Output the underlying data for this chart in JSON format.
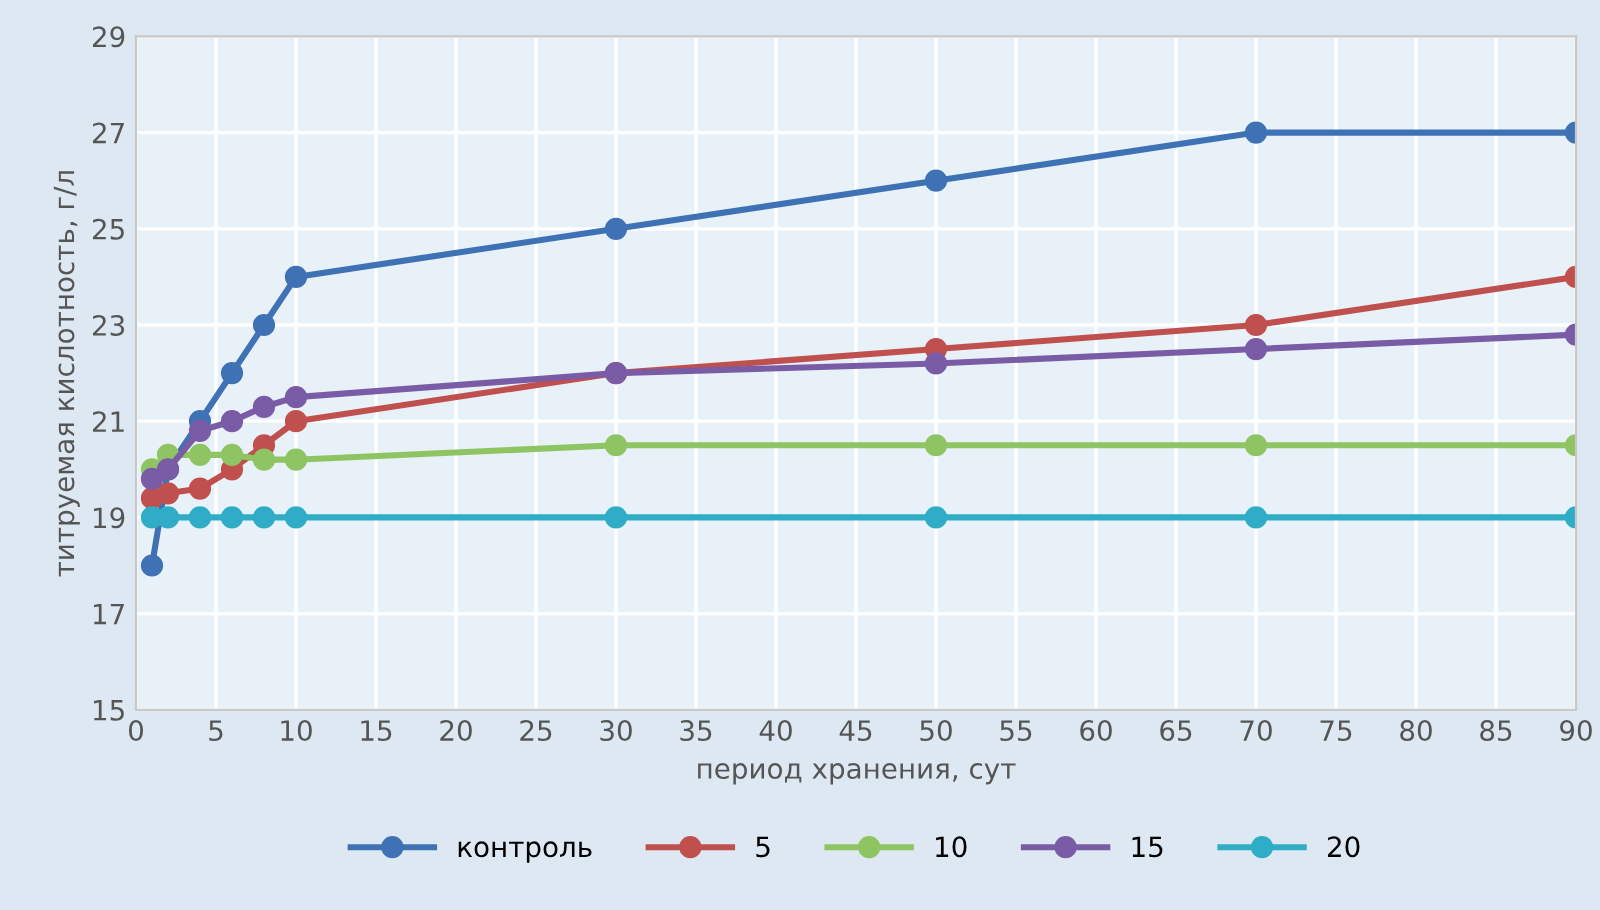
{
  "chart_data": {
    "type": "line",
    "xlabel": "период хранения, сут",
    "ylabel": "титруемая кислотность, г/л",
    "x": [
      1,
      2,
      4,
      6,
      8,
      10,
      30,
      50,
      70,
      90
    ],
    "series": [
      {
        "name": "контроль",
        "color": "#3f72b5",
        "values": [
          18,
          20,
          21,
          22,
          23,
          24,
          25,
          26,
          27,
          27
        ]
      },
      {
        "name": "5",
        "color": "#c0504d",
        "values": [
          19.4,
          19.5,
          19.6,
          20.0,
          20.5,
          21.0,
          22.0,
          22.5,
          23.0,
          24.0
        ]
      },
      {
        "name": "10",
        "color": "#8fc463",
        "values": [
          20.0,
          20.3,
          20.3,
          20.3,
          20.2,
          20.2,
          20.5,
          20.5,
          20.5,
          20.5
        ]
      },
      {
        "name": "15",
        "color": "#7a5ba6",
        "values": [
          19.8,
          20.0,
          20.8,
          21.0,
          21.3,
          21.5,
          22.0,
          22.2,
          22.5,
          22.8
        ]
      },
      {
        "name": "20",
        "color": "#2fadc6",
        "values": [
          19,
          19,
          19,
          19,
          19,
          19,
          19,
          19,
          19,
          19
        ]
      }
    ],
    "xlim": [
      0,
      90
    ],
    "xticks": [
      0,
      5,
      10,
      15,
      20,
      25,
      30,
      35,
      40,
      45,
      50,
      55,
      60,
      65,
      70,
      75,
      80,
      85,
      90
    ],
    "ylim": [
      15,
      29
    ],
    "yticks": [
      15,
      17,
      19,
      21,
      23,
      25,
      27,
      29
    ],
    "grid": true,
    "legend": "bottom",
    "marker": "circle",
    "line_style": "solid"
  }
}
